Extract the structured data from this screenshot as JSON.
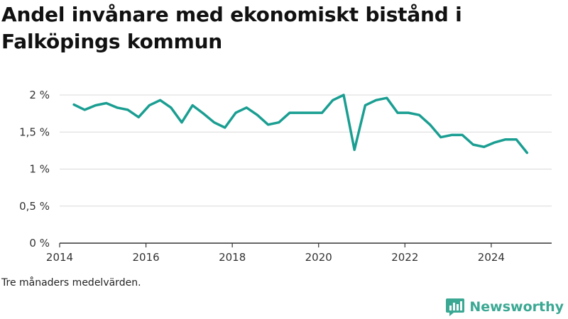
{
  "title": "Andel invånare med ekonomiskt bistånd i Falköpings kommun",
  "note": "Tre månaders medelvärden.",
  "brand": {
    "name": "Newsworthy",
    "icon": "bar-chart-icon",
    "color": "#3aa893"
  },
  "colors": {
    "line": "#1a9e92",
    "grid": "#d9d9d9",
    "axis": "#333333"
  },
  "chart_data": {
    "type": "line",
    "title": "Andel invånare med ekonomiskt bistånd i Falköpings kommun",
    "xlabel": "",
    "ylabel": "",
    "xlim": [
      2014.0,
      2025.4
    ],
    "ylim": [
      0,
      2
    ],
    "x_ticks": [
      2014,
      2016,
      2018,
      2020,
      2022,
      2024
    ],
    "y_ticks": [
      {
        "value": 0,
        "label": "0 %"
      },
      {
        "value": 0.5,
        "label": "0,5 %"
      },
      {
        "value": 1,
        "label": "1 %"
      },
      {
        "value": 1.5,
        "label": "1,5 %"
      },
      {
        "value": 2,
        "label": "2 %"
      }
    ],
    "grid": true,
    "series": [
      {
        "x": [
          2014.33,
          2014.58,
          2014.83,
          2015.08,
          2015.33,
          2015.58,
          2015.83,
          2016.08,
          2016.33,
          2016.58,
          2016.83,
          2017.08,
          2017.33,
          2017.58,
          2017.83,
          2018.08,
          2018.33,
          2018.58,
          2018.83,
          2019.08,
          2019.33,
          2019.58,
          2019.83,
          2020.08,
          2020.33,
          2020.58,
          2020.83,
          2021.08,
          2021.33,
          2021.58,
          2021.83,
          2022.08,
          2022.33,
          2022.58,
          2022.83,
          2023.08,
          2023.33,
          2023.58,
          2023.83,
          2024.08,
          2024.33,
          2024.58,
          2024.83
        ],
        "values": [
          1.87,
          1.8,
          1.86,
          1.89,
          1.83,
          1.8,
          1.7,
          1.86,
          1.93,
          1.83,
          1.63,
          1.86,
          1.75,
          1.63,
          1.56,
          1.76,
          1.83,
          1.73,
          1.6,
          1.63,
          1.76,
          1.76,
          1.76,
          1.76,
          1.93,
          2.0,
          1.26,
          1.86,
          1.93,
          1.96,
          1.76,
          1.76,
          1.73,
          1.6,
          1.43,
          1.46,
          1.46,
          1.33,
          1.3,
          1.36,
          1.4,
          1.4,
          1.22
        ]
      }
    ]
  }
}
